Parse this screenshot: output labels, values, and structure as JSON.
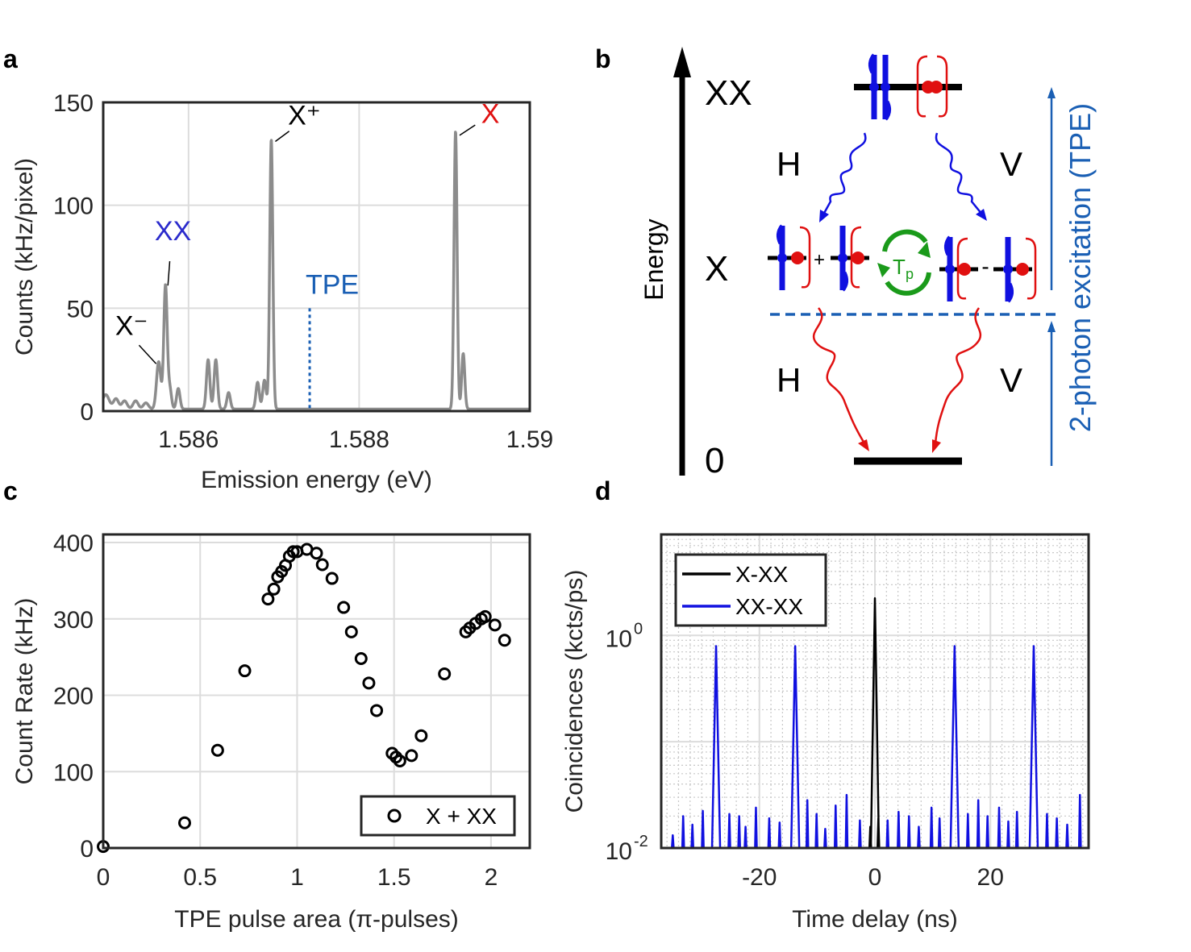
{
  "panels": {
    "a": {
      "label": "a"
    },
    "b": {
      "label": "b"
    },
    "c": {
      "label": "c"
    },
    "d": {
      "label": "d"
    }
  },
  "colors": {
    "axis": "#262626",
    "grid": "#dcdcdc",
    "spectrum": "#8c8c8c",
    "xx_label": "#2b2bcc",
    "x_label": "#e01010",
    "tpe": "#1a5fb4",
    "blue_wave": "#1010e0",
    "red_wave": "#e01010",
    "green": "#1a9a1a",
    "black": "#000000"
  },
  "chart_data": [
    {
      "id": "a",
      "type": "line",
      "xlabel": "Emission energy (eV)",
      "ylabel": "Counts (kHz/pixel)",
      "xlim": [
        1.585,
        1.59
      ],
      "ylim": [
        0,
        150
      ],
      "xticks": [
        1.586,
        1.588,
        1.59
      ],
      "xtick_labels": [
        "1.586",
        "1.588",
        "1.59"
      ],
      "yticks": [
        0,
        50,
        100,
        150
      ],
      "ytick_labels": [
        "0",
        "50",
        "100",
        "150"
      ],
      "baseline": 1,
      "peaks": [
        {
          "x": 1.58503,
          "y": 7,
          "w": 4e-05
        },
        {
          "x": 1.58515,
          "y": 5,
          "w": 3e-05
        },
        {
          "x": 1.58525,
          "y": 4,
          "w": 3e-05
        },
        {
          "x": 1.58538,
          "y": 4,
          "w": 3e-05
        },
        {
          "x": 1.5855,
          "y": 3,
          "w": 3e-05
        },
        {
          "x": 1.58565,
          "y": 23,
          "w": 2.5e-05
        },
        {
          "x": 1.58573,
          "y": 60,
          "w": 2e-05
        },
        {
          "x": 1.58578,
          "y": 10,
          "w": 2e-05
        },
        {
          "x": 1.58588,
          "y": 10,
          "w": 2e-05
        },
        {
          "x": 1.58623,
          "y": 24,
          "w": 2e-05
        },
        {
          "x": 1.58632,
          "y": 24,
          "w": 2e-05
        },
        {
          "x": 1.58647,
          "y": 8,
          "w": 2e-05
        },
        {
          "x": 1.58681,
          "y": 13,
          "w": 2e-05
        },
        {
          "x": 1.58689,
          "y": 14,
          "w": 2e-05
        },
        {
          "x": 1.58697,
          "y": 131,
          "w": 1.8e-05
        },
        {
          "x": 1.58913,
          "y": 135,
          "w": 1.8e-05
        },
        {
          "x": 1.58922,
          "y": 27,
          "w": 1.8e-05
        }
      ],
      "peak_labels": [
        {
          "text": "XX",
          "x": 1.58578,
          "y": 83,
          "color_key": "xx_label"
        },
        {
          "text": "X⁺",
          "x": 1.58726,
          "y": 140,
          "color_key": "black"
        },
        {
          "text": "X",
          "x": 1.58943,
          "y": 140,
          "color_key": "x_label"
        },
        {
          "text": "X⁻",
          "x": 1.58537,
          "y": 37,
          "color_key": "black"
        }
      ],
      "tpe": {
        "text": "TPE",
        "x": 1.58742,
        "y_top": 50
      }
    },
    {
      "id": "c",
      "type": "scatter",
      "xlabel": "TPE pulse area (π-pulses)",
      "ylabel": "Count Rate (kHz)",
      "xlim": [
        0,
        2.2
      ],
      "ylim": [
        0,
        400
      ],
      "xticks": [
        0,
        0.5,
        1,
        1.5,
        2
      ],
      "xtick_labels": [
        "0",
        "0.5",
        "1",
        "1.5",
        "2"
      ],
      "yticks": [
        0,
        100,
        200,
        300,
        400
      ],
      "ytick_labels": [
        "0",
        "100",
        "200",
        "300",
        "400"
      ],
      "series": [
        {
          "name": "X + XX",
          "x": [
            0,
            0.42,
            0.59,
            0.73,
            0.85,
            0.88,
            0.9,
            0.92,
            0.94,
            0.96,
            0.98,
            1.0,
            1.05,
            1.1,
            1.13,
            1.18,
            1.24,
            1.28,
            1.33,
            1.37,
            1.41,
            1.49,
            1.51,
            1.53,
            1.59,
            1.64,
            1.76,
            1.87,
            1.89,
            1.92,
            1.95,
            1.97,
            2.02,
            2.07
          ],
          "y": [
            2,
            33,
            128,
            232,
            326,
            339,
            355,
            362,
            370,
            382,
            388,
            388,
            391,
            386,
            371,
            353,
            315,
            283,
            248,
            216,
            180,
            124,
            119,
            114,
            121,
            147,
            228,
            283,
            288,
            294,
            300,
            303,
            292,
            272
          ]
        }
      ],
      "legend": "bottom-right"
    },
    {
      "id": "d",
      "type": "line",
      "xlabel": "Time delay (ns)",
      "ylabel": "Coincidences (kcts/ps)",
      "xlim": [
        -37,
        37
      ],
      "ylim_log10": [
        -2,
        0.95
      ],
      "xticks": [
        -20,
        0,
        20
      ],
      "xtick_labels": [
        "-20",
        "0",
        "20"
      ],
      "yticks_log10": [
        -2,
        0
      ],
      "ytick_labels": [
        "10",
        "10"
      ],
      "ytick_exponents": [
        "-2",
        "0"
      ],
      "series": [
        {
          "name": "X-XX",
          "color_key": "black",
          "peaks": [
            {
              "x": 0,
              "log_y": 0.35
            }
          ],
          "noise": [
            {
              "x": 0.6,
              "log_y": -1.72
            },
            {
              "x": -0.8,
              "log_y": -1.8
            }
          ]
        },
        {
          "name": "XX-XX",
          "color_key": "blue_wave",
          "peaks": [
            {
              "x": -27.5,
              "log_y": -0.1
            },
            {
              "x": -13.8,
              "log_y": -0.1
            },
            {
              "x": 13.8,
              "log_y": -0.1
            },
            {
              "x": 27.5,
              "log_y": -0.1
            }
          ],
          "noise": [
            {
              "x": -35,
              "log_y": -1.88
            },
            {
              "x": -33.2,
              "log_y": -1.7
            },
            {
              "x": -31.6,
              "log_y": -1.78
            },
            {
              "x": -29.8,
              "log_y": -1.65
            },
            {
              "x": -25.2,
              "log_y": -1.68
            },
            {
              "x": -23.5,
              "log_y": -1.7
            },
            {
              "x": -22.4,
              "log_y": -1.8
            },
            {
              "x": -20.6,
              "log_y": -1.62
            },
            {
              "x": -18.3,
              "log_y": -1.72
            },
            {
              "x": -16.5,
              "log_y": -1.76
            },
            {
              "x": -11.7,
              "log_y": -1.55
            },
            {
              "x": -10.1,
              "log_y": -1.68
            },
            {
              "x": -8.6,
              "log_y": -1.82
            },
            {
              "x": -6.8,
              "log_y": -1.6
            },
            {
              "x": -4.9,
              "log_y": -1.5
            },
            {
              "x": -2.6,
              "log_y": -1.74
            },
            {
              "x": 2.2,
              "log_y": -1.74
            },
            {
              "x": 4.1,
              "log_y": -1.66
            },
            {
              "x": 5.9,
              "log_y": -1.7
            },
            {
              "x": 7.6,
              "log_y": -1.8
            },
            {
              "x": 9.8,
              "log_y": -1.62
            },
            {
              "x": 11.2,
              "log_y": -1.72
            },
            {
              "x": 16.1,
              "log_y": -1.68
            },
            {
              "x": 17.9,
              "log_y": -1.55
            },
            {
              "x": 19.5,
              "log_y": -1.7
            },
            {
              "x": 21.5,
              "log_y": -1.62
            },
            {
              "x": 23.1,
              "log_y": -1.75
            },
            {
              "x": 24.6,
              "log_y": -1.66
            },
            {
              "x": 29.8,
              "log_y": -1.68
            },
            {
              "x": 31.5,
              "log_y": -1.72
            },
            {
              "x": 33.3,
              "log_y": -1.78
            },
            {
              "x": 35.5,
              "log_y": -1.5
            }
          ]
        }
      ],
      "legend": "top-left"
    }
  ],
  "diagram": {
    "energy_label": "Energy",
    "level_xx": "XX",
    "level_x": "X",
    "level_0": "0",
    "pol_h": "H",
    "pol_v": "V",
    "plus": "+",
    "minus": "-",
    "tp_main": "T",
    "tp_sub": "p",
    "tpe_label": "2-photon excitation (TPE)"
  }
}
